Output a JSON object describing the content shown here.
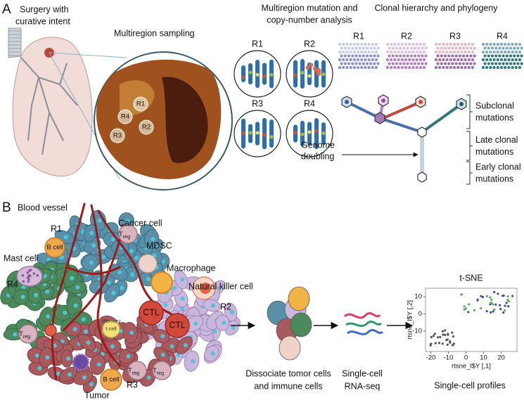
{
  "panel_a": {
    "letter": "A",
    "surgery": [
      "Surgery with",
      "curative intent"
    ],
    "sampling": {
      "title": "Multiregion sampling",
      "regions": [
        "R1",
        "R4",
        "R2",
        "R3"
      ]
    },
    "mutation_analysis": {
      "title": [
        "Multiregion mutation and",
        "copy-number analysis"
      ],
      "regions": [
        "R1",
        "R2",
        "R3",
        "R4"
      ]
    },
    "phylogeny": {
      "title": "Clonal hierarchy and phylogeny",
      "regions": [
        "R1",
        "R2",
        "R3",
        "R4"
      ],
      "genome_doubling": [
        "Genome",
        "doubling"
      ],
      "brackets": [
        [
          "Subclonal",
          "mutations"
        ],
        [
          "Late clonal",
          "mutations"
        ],
        [
          "Early clonal",
          "mutations"
        ]
      ]
    }
  },
  "panel_b": {
    "letter": "B",
    "blood_vessel": "Blood vessel",
    "cancer_cell": "Cancer cell",
    "regions": [
      "R1",
      "R4",
      "R2",
      "R3"
    ],
    "mdsc": "MDSC",
    "mast_cell": "Mast cell",
    "macrophage": "Macrophage",
    "nk_cell": "Natural killer cell",
    "tumor": "Tumor",
    "b_cell": "B cell",
    "ctl": "CTL",
    "memory_t_cell": [
      "Memory",
      "t cell"
    ],
    "treg": {
      "symbol": "T",
      "subscript": "reg"
    },
    "steps": [
      [
        "Dissociate tomor cells",
        "and immune cells"
      ],
      [
        "Single-cell",
        "RNA-seq"
      ]
    ],
    "tsne": {
      "title": "t-SNE",
      "xlabel": "rtsne_l$Y [,1]",
      "ylabel": "rtsne_l$Y [,2]",
      "xlim": [
        -23,
        29
      ],
      "ylim": [
        -22,
        15
      ],
      "xticks": [
        -20,
        -10,
        0,
        10,
        20
      ],
      "yticks": [
        10,
        0,
        -10
      ],
      "caption": "Single-cell profiles"
    }
  }
}
